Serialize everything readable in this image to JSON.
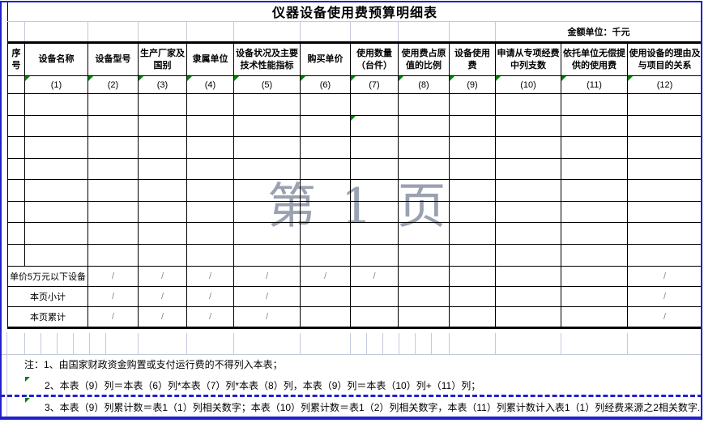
{
  "title": "仪器设备使用费预算明细表",
  "unit_note": "金额单位：千元",
  "watermark": "第 1 页",
  "colors": {
    "page_break_blue": "#2121cc",
    "table_border_black": "#000000",
    "faint_gridline": "#c4c9dc",
    "smart_tag_green": "#008000",
    "watermark_gray": "#9aa1b0"
  },
  "table": {
    "headers": [
      "序号",
      "设备名称",
      "设备型号",
      "生产厂家及国别",
      "隶属单位",
      "设备状况及主要技术性能指标",
      "购买单价",
      "使用数量（台件）",
      "使用费占原值的比例",
      "设备使用费",
      "申请从专项经费中列支数",
      "依托单位无偿提供的使用费",
      "使用设备的理由及与项目的关系"
    ],
    "col_nums": [
      "",
      "(1)",
      "(2)",
      "(3)",
      "(4)",
      "(5)",
      "(6)",
      "(7)",
      "(8)",
      "(9)",
      "(10)",
      "(11)",
      "(12)"
    ],
    "summary_rows": [
      {
        "label": "单价5万元以下设备",
        "cells": [
          "/",
          "/",
          "/",
          "/",
          "/",
          "/",
          "",
          "",
          "",
          "",
          "/"
        ]
      },
      {
        "label": "本页小计",
        "cells": [
          "/",
          "/",
          "/",
          "/",
          "",
          "",
          "",
          "",
          "",
          "",
          "/"
        ]
      },
      {
        "label": "本页累计",
        "cells": [
          "/",
          "/",
          "/",
          "/",
          "",
          "",
          "",
          "",
          "",
          "",
          "/"
        ]
      }
    ]
  },
  "notes": [
    "注：1、由国家财政资金购置或支付运行费的不得列入本表；",
    "2、本表（9）列＝本表（6）列*本表（7）列*本表（8）列，本表（9）列＝本表（10）列+（11）列；",
    "3、本表（9）列累计数＝表1（1）列相关数字；本表（10）列累计数＝表1（2）列相关数字，本表（11）列累计数计入表1（1）列经费来源之2相关数字."
  ]
}
